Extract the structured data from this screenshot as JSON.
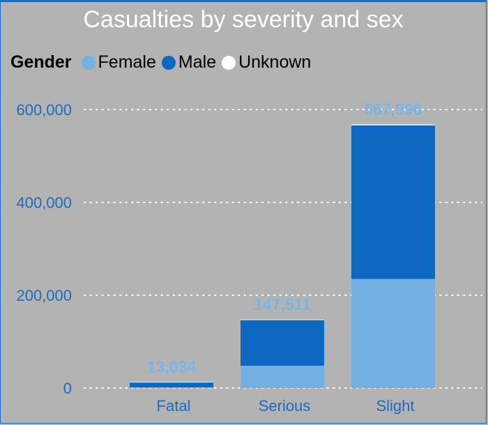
{
  "colors": {
    "female": "#74b1e3",
    "male": "#0d68c1",
    "unknown": "#ffffff"
  },
  "legend": {
    "title": "Gender",
    "items": [
      {
        "label": "Female",
        "color": "#74b1e3"
      },
      {
        "label": "Male",
        "color": "#0d68c1"
      },
      {
        "label": "Unknown",
        "color": "#ffffff"
      }
    ]
  },
  "chart_data": {
    "type": "bar",
    "stacked": true,
    "title": "Casualties by severity and sex",
    "xlabel": "",
    "ylabel": "",
    "categories": [
      "Fatal",
      "Serious",
      "Slight"
    ],
    "series": [
      {
        "name": "Female",
        "values": [
          1500,
          48000,
          235000
        ]
      },
      {
        "name": "Male",
        "values": [
          11400,
          98500,
          331000
        ]
      },
      {
        "name": "Unknown",
        "values": [
          134,
          1011,
          1996
        ]
      }
    ],
    "totals": [
      13034,
      147511,
      567996
    ],
    "total_labels": [
      "13,034",
      "147,511",
      "567,996"
    ],
    "ylim": [
      0,
      620000
    ],
    "yticks": [
      0,
      200000,
      400000,
      600000
    ],
    "ytick_labels": [
      "0",
      "200,000",
      "400,000",
      "600,000"
    ],
    "grid": true,
    "legend_position": "top-left"
  }
}
